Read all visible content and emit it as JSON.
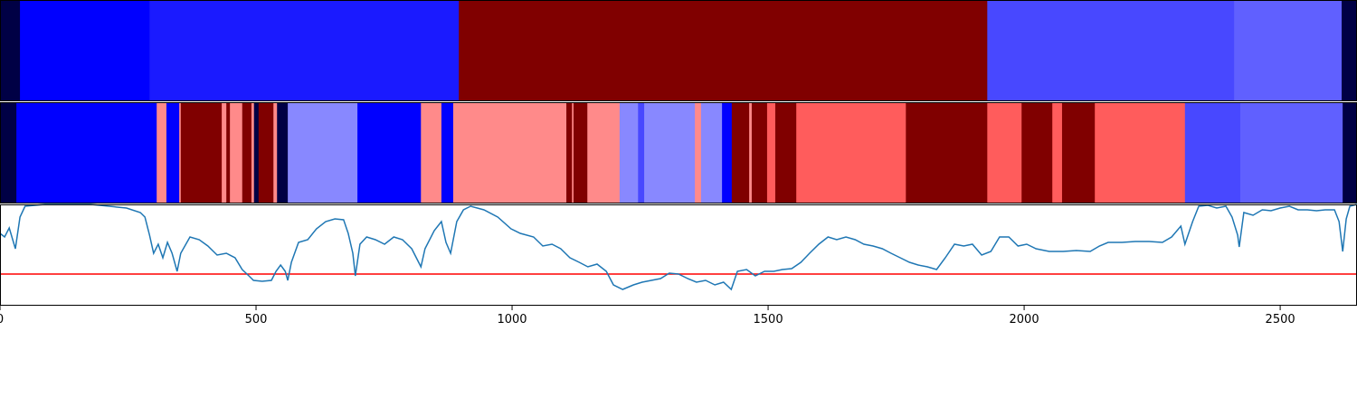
{
  "chart_data": [
    {
      "type": "segments",
      "xlim": [
        0,
        2650
      ],
      "bounds": [
        0,
        39,
        292,
        896,
        1928,
        2410,
        2620,
        2650
      ],
      "colors": [
        "#000045",
        "#0000ff",
        "#1a1aff",
        "#800000",
        "#4848ff",
        "#6060ff",
        "#000045"
      ]
    },
    {
      "type": "segments",
      "xlim": [
        0,
        2650
      ],
      "bounds": [
        0,
        32,
        306,
        325,
        350,
        353,
        433,
        442,
        449,
        473,
        491,
        496,
        505,
        534,
        541,
        562,
        698,
        822,
        862,
        885,
        1106,
        1117,
        1120,
        1147,
        1210,
        1246,
        1258,
        1357,
        1369,
        1410,
        1429,
        1463,
        1468,
        1498,
        1514,
        1555,
        1769,
        1928,
        1995,
        2055,
        2074,
        2138,
        2314,
        2422,
        2622,
        2650
      ],
      "colors": [
        "#000045",
        "#0000ff",
        "#ff8a8a",
        "#0000ff",
        "#ff8a8a",
        "#800000",
        "#ff8a8a",
        "#800000",
        "#ff8a8a",
        "#800000",
        "#ff8a8a",
        "#000045",
        "#800000",
        "#ff8a8a",
        "#000045",
        "#8888ff",
        "#0000ff",
        "#ff8a8a",
        "#0000ff",
        "#ff8a8a",
        "#800000",
        "#ff8a8a",
        "#800000",
        "#ff8a8a",
        "#8888ff",
        "#4848ff",
        "#8888ff",
        "#ff8a8a",
        "#8888ff",
        "#0000ff",
        "#800000",
        "#ff8a8a",
        "#800000",
        "#ff5c5c",
        "#800000",
        "#ff5c5c",
        "#800000",
        "#ff5c5c",
        "#800000",
        "#ff5c5c",
        "#800000",
        "#ff5c5c",
        "#4848ff",
        "#6060ff",
        "#000045"
      ]
    },
    {
      "type": "line",
      "xlim": [
        0,
        2650
      ],
      "ylim": [
        0,
        112
      ],
      "xticks": [
        0,
        500,
        1000,
        1500,
        2000,
        2500
      ],
      "x": [
        0,
        9,
        18,
        30,
        39,
        49,
        88,
        177,
        247,
        274,
        283,
        292,
        300,
        309,
        318,
        327,
        336,
        346,
        353,
        371,
        389,
        406,
        424,
        442,
        459,
        473,
        486,
        495,
        512,
        530,
        539,
        548,
        557,
        562,
        569,
        583,
        601,
        618,
        636,
        654,
        671,
        680,
        689,
        694,
        703,
        716,
        733,
        751,
        769,
        786,
        804,
        813,
        822,
        830,
        848,
        862,
        871,
        880,
        892,
        905,
        919,
        945,
        972,
        998,
        1016,
        1042,
        1060,
        1078,
        1095,
        1113,
        1131,
        1148,
        1166,
        1184,
        1198,
        1216,
        1237,
        1254,
        1272,
        1290,
        1307,
        1325,
        1343,
        1360,
        1378,
        1396,
        1413,
        1428,
        1440,
        1458,
        1475,
        1493,
        1511,
        1528,
        1546,
        1564,
        1581,
        1599,
        1617,
        1634,
        1652,
        1670,
        1687,
        1705,
        1723,
        1740,
        1758,
        1776,
        1793,
        1811,
        1829,
        1846,
        1864,
        1882,
        1899,
        1917,
        1935,
        1952,
        1970,
        1988,
        2005,
        2023,
        2049,
        2076,
        2102,
        2129,
        2147,
        2164,
        2191,
        2217,
        2244,
        2270,
        2288,
        2306,
        2314,
        2329,
        2341,
        2359,
        2376,
        2394,
        2406,
        2417,
        2420,
        2429,
        2447,
        2465,
        2482,
        2500,
        2518,
        2535,
        2553,
        2571,
        2588,
        2606,
        2615,
        2622,
        2629,
        2636,
        2650
      ],
      "series": [
        {
          "color": "#1f77b4",
          "values": [
            80,
            76,
            86,
            63,
            98,
            110,
            112,
            112,
            108,
            103,
            98,
            78,
            58,
            68,
            53,
            70,
            58,
            38,
            58,
            76,
            73,
            66,
            56,
            58,
            53,
            40,
            33,
            28,
            27,
            28,
            38,
            45,
            38,
            28,
            48,
            70,
            73,
            85,
            93,
            96,
            95,
            80,
            58,
            33,
            68,
            76,
            73,
            68,
            76,
            73,
            63,
            53,
            43,
            63,
            83,
            93,
            70,
            58,
            93,
            106,
            110,
            106,
            98,
            85,
            80,
            76,
            66,
            68,
            63,
            53,
            48,
            43,
            46,
            38,
            23,
            18,
            23,
            26,
            28,
            30,
            36,
            35,
            30,
            26,
            28,
            23,
            26,
            18,
            38,
            40,
            33,
            38,
            38,
            40,
            41,
            48,
            58,
            68,
            76,
            73,
            76,
            73,
            68,
            66,
            63,
            58,
            53,
            48,
            45,
            43,
            40,
            53,
            68,
            66,
            68,
            56,
            60,
            76,
            76,
            66,
            68,
            63,
            60,
            60,
            61,
            60,
            66,
            70,
            70,
            71,
            71,
            70,
            76,
            88,
            68,
            93,
            110,
            111,
            108,
            110,
            98,
            78,
            65,
            103,
            100,
            106,
            105,
            108,
            110,
            106,
            106,
            105,
            106,
            106,
            93,
            60,
            96,
            110,
            112
          ]
        }
      ],
      "hline": {
        "value": 35,
        "color": "#ff0000"
      }
    }
  ]
}
